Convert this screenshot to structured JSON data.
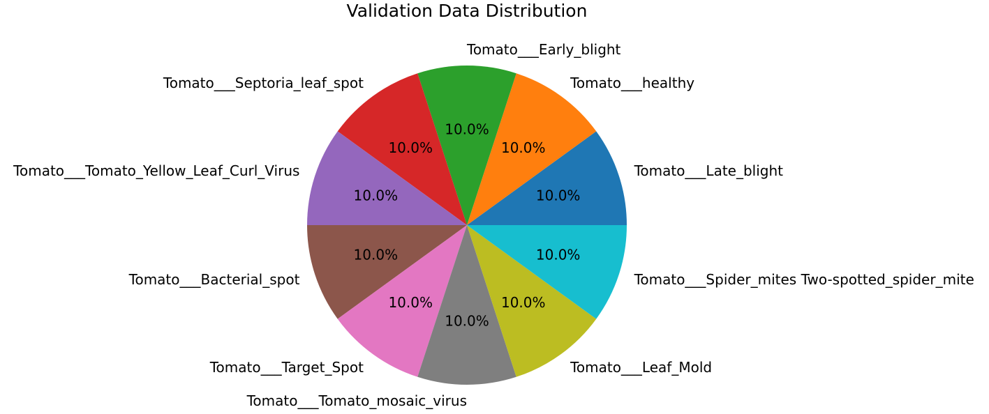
{
  "chart_data": {
    "type": "pie",
    "title": "Validation Data Distribution",
    "start_angle_deg": 0,
    "direction": "counterclockwise",
    "slices": [
      {
        "label": "Tomato___Late_blight",
        "value": 10.0,
        "pct_label": "10.0%",
        "color": "#1f77b4"
      },
      {
        "label": "Tomato___healthy",
        "value": 10.0,
        "pct_label": "10.0%",
        "color": "#ff7f0e"
      },
      {
        "label": "Tomato___Early_blight",
        "value": 10.0,
        "pct_label": "10.0%",
        "color": "#2ca02c"
      },
      {
        "label": "Tomato___Septoria_leaf_spot",
        "value": 10.0,
        "pct_label": "10.0%",
        "color": "#d62728"
      },
      {
        "label": "Tomato___Tomato_Yellow_Leaf_Curl_Virus",
        "value": 10.0,
        "pct_label": "10.0%",
        "color": "#9467bd"
      },
      {
        "label": "Tomato___Bacterial_spot",
        "value": 10.0,
        "pct_label": "10.0%",
        "color": "#8c564b"
      },
      {
        "label": "Tomato___Target_Spot",
        "value": 10.0,
        "pct_label": "10.0%",
        "color": "#e377c2"
      },
      {
        "label": "Tomato___Tomato_mosaic_virus",
        "value": 10.0,
        "pct_label": "10.0%",
        "color": "#7f7f7f"
      },
      {
        "label": "Tomato___Leaf_Mold",
        "value": 10.0,
        "pct_label": "10.0%",
        "color": "#bcbd22"
      },
      {
        "label": "Tomato___Spider_mites Two-spotted_spider_mite",
        "value": 10.0,
        "pct_label": "10.0%",
        "color": "#17becf"
      }
    ]
  }
}
